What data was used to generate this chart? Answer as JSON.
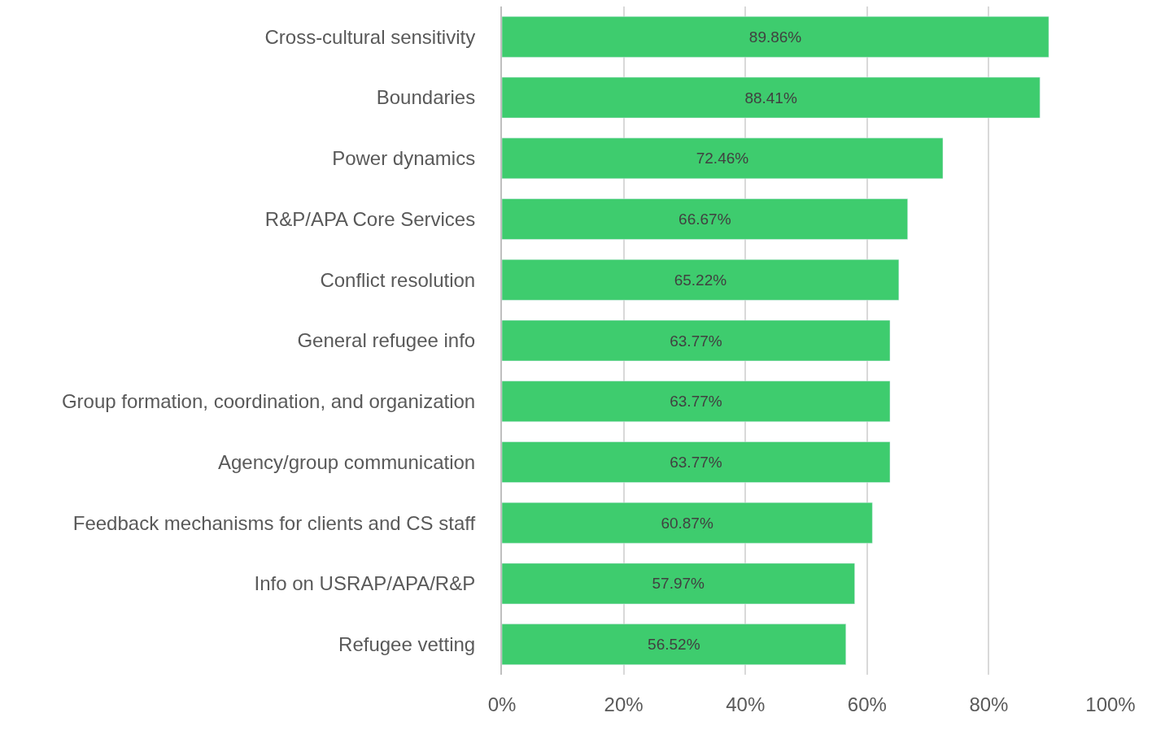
{
  "chart_data": {
    "type": "bar",
    "orientation": "horizontal",
    "categories": [
      "Cross-cultural sensitivity",
      "Boundaries",
      "Power dynamics",
      "R&P/APA Core Services",
      "Conflict resolution",
      "General refugee info",
      "Group formation, coordination, and organization",
      "Agency/group communication",
      "Feedback mechanisms for clients and CS staff",
      "Info on USRAP/APA/R&P",
      "Refugee vetting"
    ],
    "values": [
      89.86,
      88.41,
      72.46,
      66.67,
      65.22,
      63.77,
      63.77,
      63.77,
      60.87,
      57.97,
      56.52
    ],
    "value_labels": [
      "89.86%",
      "88.41%",
      "72.46%",
      "66.67%",
      "65.22%",
      "63.77%",
      "63.77%",
      "63.77%",
      "60.87%",
      "57.97%",
      "56.52%"
    ],
    "color": "#3ecc6e",
    "xlim": [
      0,
      100
    ],
    "xticks": [
      {
        "value": 0,
        "label": "0%"
      },
      {
        "value": 20,
        "label": "20%"
      },
      {
        "value": 40,
        "label": "40%"
      },
      {
        "value": 60,
        "label": "60%"
      },
      {
        "value": 80,
        "label": "80%"
      },
      {
        "value": 100,
        "label": "100%"
      }
    ],
    "grid": "x",
    "legend": false
  }
}
